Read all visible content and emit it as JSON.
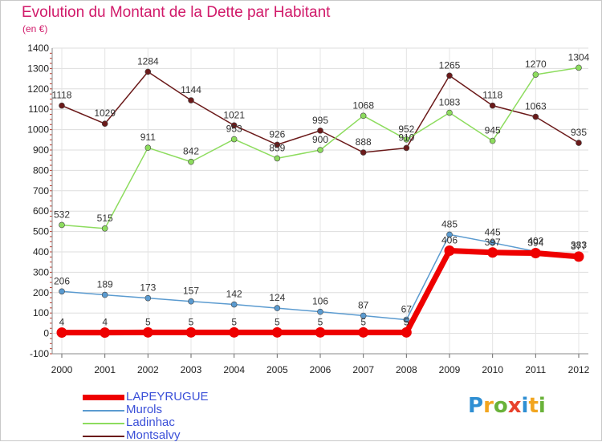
{
  "title": "Evolution du Montant de la Dette par Habitant",
  "unit": "(en €)",
  "logo": {
    "letters": [
      "P",
      "r",
      "o",
      "x",
      "i",
      "t",
      "i"
    ],
    "colors": [
      "#2f8fd3",
      "#f2a51f",
      "#6ab23a",
      "#e8412c",
      "#2f8fd3",
      "#f2a51f",
      "#6ab23a"
    ]
  },
  "chart_data": {
    "type": "line",
    "categories": [
      "2000",
      "2001",
      "2002",
      "2003",
      "2004",
      "2005",
      "2006",
      "2007",
      "2008",
      "2009",
      "2010",
      "2011",
      "2012"
    ],
    "ylim": [
      -100,
      1400
    ],
    "yticks": [
      "-100",
      "0",
      "100",
      "200",
      "300",
      "400",
      "500",
      "600",
      "700",
      "800",
      "900",
      "1000",
      "1100",
      "1200",
      "1300",
      "1400"
    ],
    "grid": true,
    "series": [
      {
        "name": "LAPEYRUGUE",
        "color": "#ee0000",
        "values": [
          4,
          4,
          5,
          5,
          5,
          5,
          5,
          5,
          5,
          406,
          397,
          394,
          377
        ]
      },
      {
        "name": "Murols",
        "color": "#5b9bd0",
        "values": [
          206,
          189,
          173,
          157,
          142,
          124,
          106,
          87,
          67,
          485,
          445,
          402,
          383
        ]
      },
      {
        "name": "Ladinhac",
        "color": "#8ddc5e",
        "values": [
          532,
          515,
          911,
          842,
          953,
          859,
          900,
          1068,
          952,
          1083,
          945,
          1270,
          1304
        ]
      },
      {
        "name": "Montsalvy",
        "color": "#6b1a1a",
        "values": [
          1118,
          1029,
          1284,
          1144,
          1021,
          926,
          995,
          888,
          910,
          1265,
          1118,
          1063,
          935
        ]
      }
    ]
  }
}
